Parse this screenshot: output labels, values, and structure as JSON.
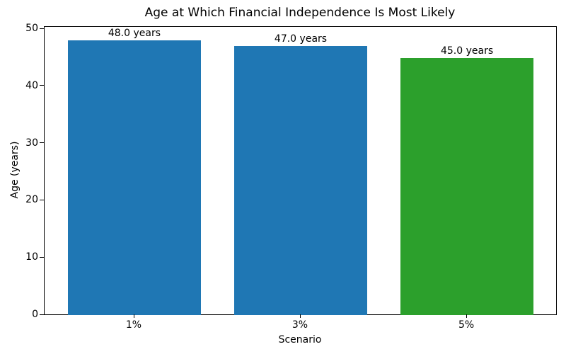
{
  "figure": {
    "background": "#ffffff",
    "text_color": "#000000",
    "spine_color": "#000000"
  },
  "chart_data": {
    "type": "bar",
    "title": "Age at Which Financial Independence Is Most Likely",
    "xlabel": "Scenario",
    "ylabel": "Age (years)",
    "categories": [
      "1%",
      "3%",
      "5%"
    ],
    "values": [
      48.0,
      47.0,
      45.0
    ],
    "bar_labels": [
      "48.0 years",
      "47.0 years",
      "45.0 years"
    ],
    "bar_colors": [
      "#1f77b4",
      "#1f77b4",
      "#2ca02c"
    ],
    "ylim": [
      0,
      50.4
    ],
    "yticks": [
      0,
      10,
      20,
      30,
      40,
      50
    ],
    "xlim_units": [
      -0.54,
      2.54
    ],
    "bar_width_fraction": 0.8,
    "grid": false,
    "legend": null
  }
}
